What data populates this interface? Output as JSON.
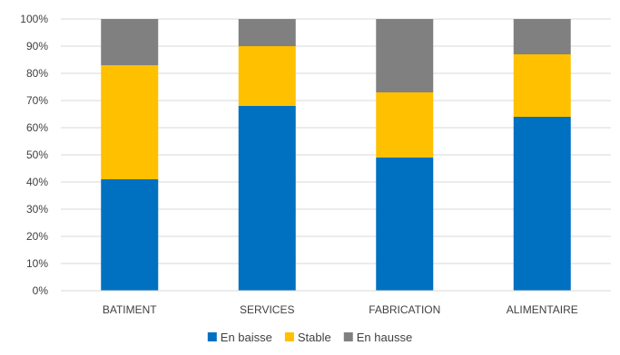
{
  "chart_data": {
    "type": "bar",
    "stacked": "percent",
    "categories": [
      "BATIMENT",
      "SERVICES",
      "FABRICATION",
      "ALIMENTAIRE"
    ],
    "series": [
      {
        "name": "En baisse",
        "color": "#0070C0",
        "values": [
          41,
          68,
          49,
          64
        ]
      },
      {
        "name": "Stable",
        "color": "#FFC000",
        "values": [
          42,
          22,
          24,
          23
        ]
      },
      {
        "name": "En hausse",
        "color": "#808080",
        "values": [
          17,
          10,
          27,
          13
        ]
      }
    ],
    "y_ticks": [
      "0%",
      "10%",
      "20%",
      "30%",
      "40%",
      "50%",
      "60%",
      "70%",
      "80%",
      "90%",
      "100%"
    ],
    "ylim": [
      0,
      100
    ],
    "grid": true,
    "legend_position": "bottom"
  }
}
